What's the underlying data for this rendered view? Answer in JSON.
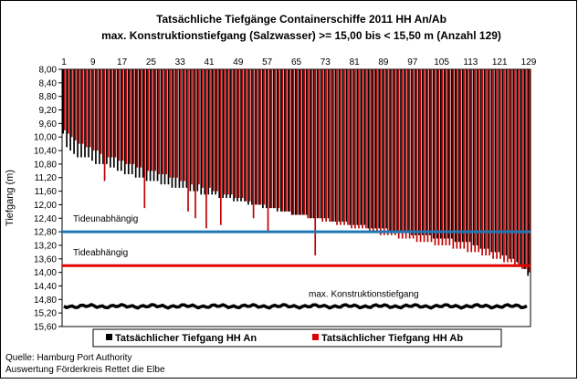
{
  "chart_data": {
    "type": "bar",
    "title_line1": "Tatsächliche Tiefgänge Containerschiffe  2011 HH An/Ab",
    "title_line2": "max. Konstruktionstiefgang  (Salzwasser)  >= 15,00 bis < 15,50 m  (Anzahl 129)",
    "ylabel": "Tiefgang (m)",
    "y_inverted": true,
    "ylim": [
      8.0,
      15.6
    ],
    "y_ticks": [
      "8,00",
      "8,40",
      "8,80",
      "9,20",
      "9,60",
      "10,00",
      "10,40",
      "10,80",
      "11,20",
      "11,60",
      "12,00",
      "12,40",
      "12,80",
      "13,20",
      "13,60",
      "14,00",
      "14,40",
      "14,80",
      "15,20",
      "15,60"
    ],
    "x_tick_labels": [
      "1",
      "9",
      "17",
      "25",
      "33",
      "41",
      "49",
      "57",
      "65",
      "73",
      "81",
      "89",
      "97",
      "105",
      "113",
      "121",
      "129"
    ],
    "ship_count": 129,
    "series": [
      {
        "name": "Tatsächlicher Tiefgang HH An",
        "color": "#000000",
        "values": [
          9.9,
          10.3,
          10.4,
          10.5,
          10.6,
          10.6,
          10.6,
          10.6,
          10.7,
          10.8,
          10.8,
          10.8,
          10.8,
          10.9,
          10.9,
          11.0,
          11.0,
          11.1,
          11.1,
          11.1,
          11.2,
          11.2,
          11.2,
          11.3,
          11.3,
          11.3,
          11.3,
          11.4,
          11.4,
          11.4,
          11.5,
          11.5,
          11.5,
          11.5,
          11.5,
          11.6,
          11.6,
          11.6,
          11.7,
          11.7,
          11.7,
          11.7,
          11.7,
          11.8,
          11.8,
          11.8,
          11.8,
          11.9,
          11.9,
          11.9,
          11.9,
          12.0,
          12.0,
          12.0,
          12.0,
          12.1,
          12.1,
          12.1,
          12.1,
          12.2,
          12.2,
          12.2,
          12.2,
          12.3,
          12.3,
          12.3,
          12.3,
          12.3,
          12.4,
          12.4,
          12.4,
          12.4,
          12.4,
          12.4,
          12.5,
          12.5,
          12.5,
          12.5,
          12.5,
          12.6,
          12.6,
          12.6,
          12.6,
          12.6,
          12.7,
          12.7,
          12.7,
          12.7,
          12.7,
          12.7,
          12.8,
          12.8,
          12.8,
          12.8,
          12.8,
          12.8,
          12.9,
          12.9,
          12.9,
          12.9,
          12.9,
          12.9,
          13.0,
          13.0,
          13.0,
          13.0,
          13.0,
          13.0,
          13.1,
          13.1,
          13.1,
          13.1,
          13.1,
          13.2,
          13.2,
          13.3,
          13.3,
          13.3,
          13.4,
          13.4,
          13.4,
          13.5,
          13.5,
          13.6,
          13.6,
          13.7,
          13.8,
          13.9,
          14.1
        ]
      },
      {
        "name": "Tatsächlicher Tiefgang HH Ab",
        "color": "#c00000",
        "values": [
          9.8,
          9.9,
          10.0,
          10.1,
          10.2,
          10.2,
          10.3,
          10.3,
          10.4,
          10.4,
          10.5,
          11.3,
          10.6,
          10.6,
          10.6,
          10.7,
          10.7,
          10.8,
          10.8,
          10.8,
          10.9,
          10.9,
          12.1,
          11.0,
          11.0,
          11.0,
          11.1,
          11.1,
          11.1,
          11.2,
          11.2,
          11.2,
          11.3,
          11.3,
          12.2,
          11.4,
          12.4,
          11.4,
          11.5,
          12.7,
          11.5,
          11.6,
          11.6,
          12.6,
          11.7,
          11.7,
          11.7,
          11.8,
          11.8,
          11.8,
          11.9,
          11.9,
          12.4,
          12.0,
          12.0,
          12.0,
          12.8,
          12.1,
          12.1,
          12.1,
          12.2,
          12.2,
          12.2,
          12.3,
          12.3,
          12.3,
          12.3,
          12.4,
          12.4,
          13.5,
          12.4,
          12.5,
          12.5,
          12.5,
          12.5,
          12.6,
          12.6,
          12.6,
          12.6,
          12.7,
          12.7,
          12.7,
          12.7,
          12.7,
          12.8,
          12.8,
          12.8,
          12.9,
          12.9,
          12.9,
          12.9,
          12.9,
          13.0,
          13.0,
          13.0,
          13.0,
          13.0,
          13.1,
          13.1,
          13.1,
          13.1,
          13.1,
          13.2,
          13.2,
          13.2,
          13.2,
          13.2,
          13.3,
          13.3,
          13.3,
          13.3,
          13.4,
          13.4,
          13.4,
          13.4,
          13.5,
          13.5,
          13.5,
          13.6,
          13.6,
          13.6,
          13.7,
          13.7,
          13.7,
          13.8,
          13.8,
          13.9,
          13.9,
          14.0
        ]
      }
    ],
    "reference_lines": [
      {
        "label": "Tideunabhängig",
        "value": 12.8,
        "color": "#1f77b4"
      },
      {
        "label": "Tideabhängig",
        "value": 13.8,
        "color": "#e00000"
      },
      {
        "label": "max. Konstruktionstiefgang",
        "value": 15.0,
        "color": "#000000"
      }
    ],
    "legend": {
      "position": "bottom",
      "items": [
        {
          "label": "Tatsächlicher Tiefgang HH An",
          "color": "#000000"
        },
        {
          "label": "Tatsächlicher Tiefgang HH Ab",
          "color": "#e00000"
        }
      ]
    },
    "source_line1": "Quelle: Hamburg Port Authority",
    "source_line2": "Auswertung Förderkreis Rettet die Elbe"
  }
}
